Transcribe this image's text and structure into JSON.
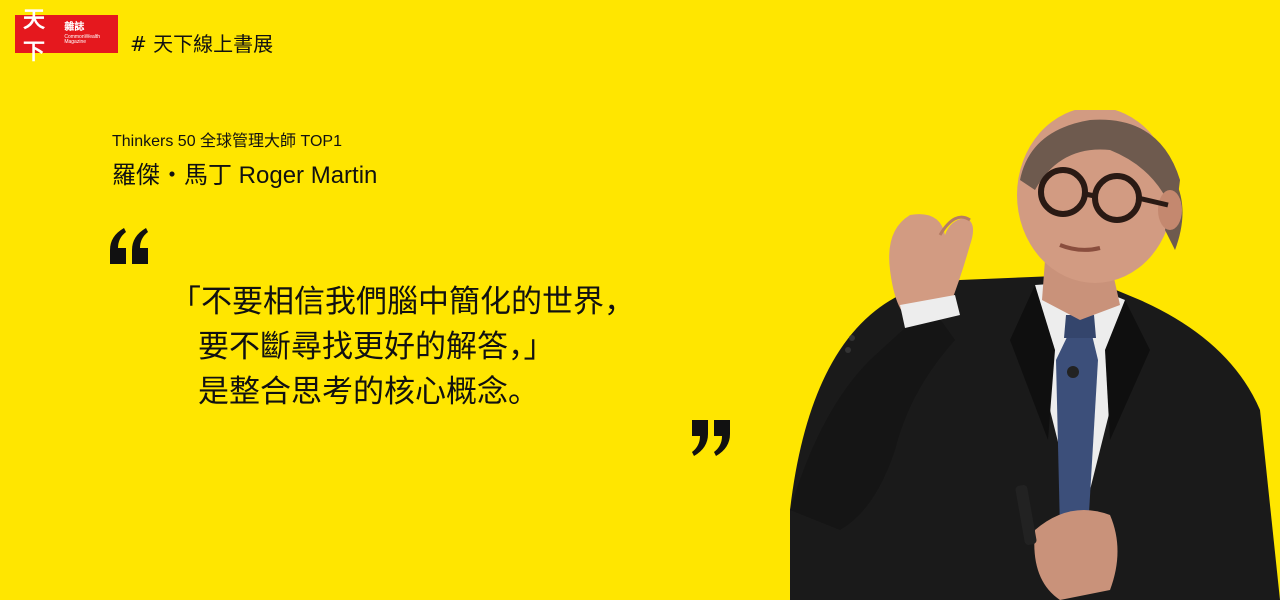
{
  "brand": {
    "logo_main": "天下",
    "logo_side": "雜誌",
    "logo_en": "CommonWealth Magazine",
    "hashtag": "# 天下線上書展"
  },
  "header": {
    "subtitle": "Thinkers 50 全球管理大師 TOP1",
    "speaker": "羅傑・馬丁 Roger Martin"
  },
  "quote": {
    "line1": "「不要相信我們腦中簡化的世界，",
    "line2": "要不斷尋找更好的解答，」",
    "line3": "是整合思考的核心概念。"
  },
  "colors": {
    "background": "#FFE600",
    "logo_red": "#E5181E",
    "text": "#111111"
  },
  "icons": {
    "open_quote": "open-quote-icon",
    "close_quote": "close-quote-icon"
  }
}
